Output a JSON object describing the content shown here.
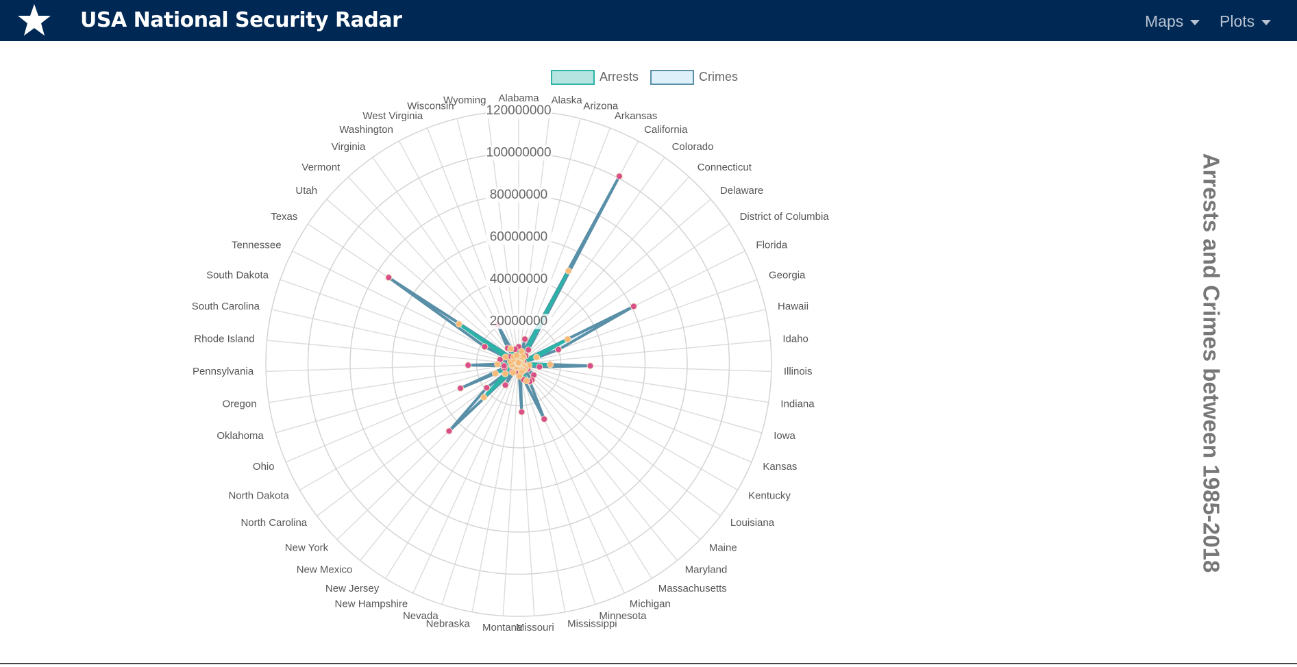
{
  "header": {
    "title": "USA National Security Radar",
    "menu": [
      "Maps",
      "Plots"
    ]
  },
  "chart_data": {
    "type": "radar",
    "title": "Arrests and Crimes between 1985-2018",
    "categories": [
      "Alabama",
      "Alaska",
      "Arizona",
      "Arkansas",
      "California",
      "Colorado",
      "Connecticut",
      "Delaware",
      "District of Columbia",
      "Florida",
      "Georgia",
      "Hawaii",
      "Idaho",
      "Illinois",
      "Indiana",
      "Iowa",
      "Kansas",
      "Kentucky",
      "Louisiana",
      "Maine",
      "Maryland",
      "Massachusetts",
      "Michigan",
      "Minnesota",
      "Mississippi",
      "Missouri",
      "Montana",
      "Nebraska",
      "Nevada",
      "New Hampshire",
      "New Jersey",
      "New Mexico",
      "New York",
      "North Carolina",
      "North Dakota",
      "Ohio",
      "Oklahoma",
      "Oregon",
      "Pennsylvania",
      "Rhode Island",
      "South Carolina",
      "South Dakota",
      "Tennessee",
      "Texas",
      "Utah",
      "Vermont",
      "Virginia",
      "Washington",
      "West Virginia",
      "Wisconsin",
      "Wyoming"
    ],
    "series": [
      {
        "name": "Arrests",
        "color": "#2bb3a8",
        "fill": "#2bb3a8",
        "point_color": "#f7b977",
        "values": [
          3500000,
          600000,
          6000000,
          2500000,
          50000000,
          4000000,
          2000000,
          800000,
          1000000,
          26000000,
          9000000,
          1000000,
          1000000,
          15000000,
          5000000,
          2000000,
          3000000,
          3000000,
          4000000,
          700000,
          4000000,
          4000000,
          9000000,
          4000000,
          2000000,
          6000000,
          500000,
          1500000,
          2000000,
          500000,
          5000000,
          2000000,
          23000000,
          8000000,
          400000,
          12000000,
          3500000,
          3000000,
          10000000,
          700000,
          4000000,
          600000,
          7000000,
          34000000,
          3000000,
          300000,
          4000000,
          8000000,
          1000000,
          4000000,
          400000
        ]
      },
      {
        "name": "Crimes",
        "color": "#5a8fa8",
        "fill": "#d6ecf7",
        "point_color": "#d94f8a",
        "values": [
          8000000,
          1200000,
          12000000,
          5000000,
          101000000,
          8000000,
          5000000,
          1500000,
          2000000,
          61000000,
          20000000,
          2500000,
          1500000,
          34000000,
          10000000,
          4000000,
          5000000,
          5000000,
          9000000,
          1500000,
          10000000,
          10000000,
          29000000,
          8000000,
          5000000,
          23000000,
          1000000,
          2500000,
          4000000,
          1000000,
          12000000,
          5000000,
          46000000,
          19000000,
          600000,
          30000000,
          7000000,
          7000000,
          24000000,
          1500000,
          9000000,
          1000000,
          18000000,
          74000000,
          5000000,
          600000,
          9000000,
          21000000,
          2000000,
          7000000,
          600000
        ]
      }
    ],
    "rlim": [
      0,
      120000000
    ],
    "rticks": [
      20000000,
      40000000,
      60000000,
      80000000,
      100000000,
      120000000
    ],
    "grid": true,
    "legend": "top"
  }
}
